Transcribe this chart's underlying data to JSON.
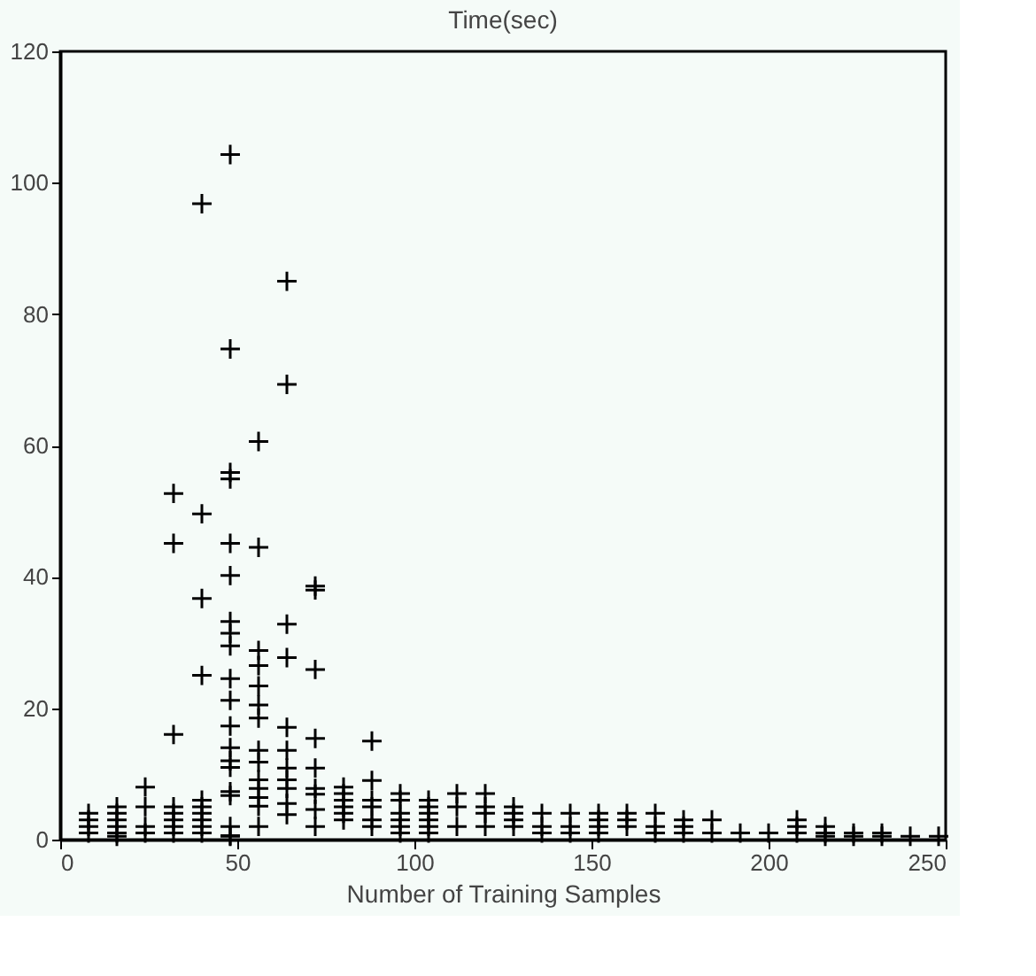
{
  "chart_data": {
    "type": "scatter",
    "title": "Time(sec)",
    "xlabel": "Number of Training Samples",
    "xlim": [
      0,
      250
    ],
    "xticks": [
      0,
      50,
      100,
      150,
      200,
      250
    ],
    "ylim": [
      0,
      120
    ],
    "yticks": [
      0,
      20,
      40,
      60,
      80,
      100,
      120
    ],
    "grid": false,
    "marker": "cross",
    "series": [
      {
        "color": "#000000",
        "x": [
          40,
          8,
          8,
          8,
          8,
          16,
          16,
          16,
          16,
          16,
          16,
          24,
          24,
          24,
          24,
          32,
          32,
          32,
          32,
          32,
          32,
          32,
          32,
          40,
          40,
          40,
          40,
          40,
          40,
          40,
          40,
          40,
          48,
          48,
          48,
          48,
          48,
          48,
          48,
          48,
          48,
          48,
          48,
          48,
          48,
          48,
          48,
          48,
          48,
          48,
          48,
          48,
          56,
          56,
          56,
          56,
          56,
          56,
          56,
          56,
          56,
          56,
          56,
          56,
          56,
          56,
          64,
          64,
          64,
          64,
          64,
          64,
          64,
          64,
          64,
          64,
          64,
          72,
          72,
          72,
          72,
          72,
          72,
          72,
          72,
          72,
          80,
          80,
          80,
          80,
          80,
          80,
          88,
          88,
          88,
          88,
          88,
          88,
          96,
          96,
          96,
          96,
          96,
          96,
          104,
          104,
          104,
          104,
          104,
          104,
          112,
          112,
          112,
          120,
          120,
          120,
          120,
          128,
          128,
          128,
          128,
          136,
          136,
          136,
          144,
          144,
          144,
          152,
          152,
          152,
          152,
          160,
          160,
          160,
          168,
          168,
          168,
          176,
          176,
          176,
          184,
          184,
          192,
          200,
          208,
          208,
          208,
          216,
          216,
          216,
          224,
          224,
          232,
          232,
          240,
          248
        ],
        "values": [
          96.8,
          1,
          2,
          3,
          4,
          1,
          2,
          3,
          4,
          5,
          0.5,
          1,
          2,
          5,
          8,
          1,
          2,
          3,
          4,
          5,
          16,
          52.7,
          45.1,
          1,
          2,
          3,
          4,
          5,
          6,
          25,
          36.7,
          49.6,
          0.5,
          2,
          6.7,
          7.3,
          12,
          14,
          17.3,
          21.2,
          24.5,
          29.5,
          31.4,
          33.2,
          40.2,
          45.1,
          54.9,
          55.9,
          74.7,
          104.3,
          11,
          0.6,
          2,
          5.1,
          6.4,
          7.8,
          9.1,
          11.8,
          13.6,
          18.5,
          20.5,
          23.4,
          26.5,
          28.8,
          44.5,
          60.6,
          3.8,
          5.5,
          7.8,
          9.1,
          10.9,
          13.6,
          17.1,
          27.7,
          32.8,
          69.3,
          85,
          2,
          4.6,
          6.9,
          7.8,
          10.9,
          15.4,
          25.9,
          38,
          38.6,
          3,
          4,
          5,
          6,
          7,
          8,
          2,
          3,
          5,
          6,
          9,
          15,
          1,
          2,
          3,
          4,
          6,
          7,
          1,
          2,
          3,
          4,
          5,
          6,
          2,
          5,
          7,
          2,
          4,
          5,
          7,
          2,
          3,
          4,
          5,
          1,
          2,
          4,
          1,
          2,
          4,
          1,
          2,
          3,
          4,
          2,
          3,
          4,
          1,
          2,
          4,
          1,
          2,
          3,
          1,
          3,
          1,
          1,
          1,
          2,
          3,
          0.5,
          1,
          2,
          0.5,
          1,
          0.5,
          1,
          0.5,
          0.5
        ]
      }
    ]
  }
}
